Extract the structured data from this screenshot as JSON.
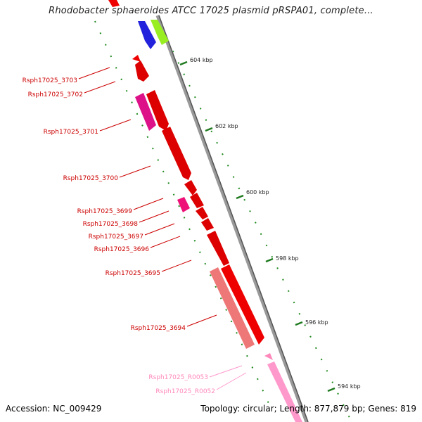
{
  "title": "Rhodobacter sphaeroides ATCC 17025 plasmid pRSPA01, complete...",
  "footer": {
    "accession": "Accession: NC_009429",
    "summary": "Topology: circular; Length: 877,879 bp; Genes: 819"
  },
  "ticks": [
    {
      "label": "604 kbp"
    },
    {
      "label": "602 kbp"
    },
    {
      "label": "600 kbp"
    },
    {
      "label": "598 kbp"
    },
    {
      "label": "596 kbp"
    },
    {
      "label": "594 kbp"
    }
  ],
  "genes": [
    {
      "label": "Rsph17025_3703",
      "type": "CDS"
    },
    {
      "label": "Rsph17025_3702",
      "type": "CDS"
    },
    {
      "label": "Rsph17025_3701",
      "type": "CDS"
    },
    {
      "label": "Rsph17025_3700",
      "type": "CDS"
    },
    {
      "label": "Rsph17025_3699",
      "type": "CDS"
    },
    {
      "label": "Rsph17025_3698",
      "type": "CDS"
    },
    {
      "label": "Rsph17025_3697",
      "type": "CDS"
    },
    {
      "label": "Rsph17025_3696",
      "type": "CDS"
    },
    {
      "label": "Rsph17025_3695",
      "type": "CDS"
    },
    {
      "label": "Rsph17025_3694",
      "type": "CDS"
    },
    {
      "label": "Rsph17025_R0053",
      "type": "RNA"
    },
    {
      "label": "Rsph17025_R0052",
      "type": "RNA"
    }
  ],
  "colors": {
    "cds": "#ee0000",
    "cds_label": "#cc0000",
    "rna_label": "#ff88bb",
    "backbone": "#888888",
    "tick": "#1f7a1f"
  }
}
